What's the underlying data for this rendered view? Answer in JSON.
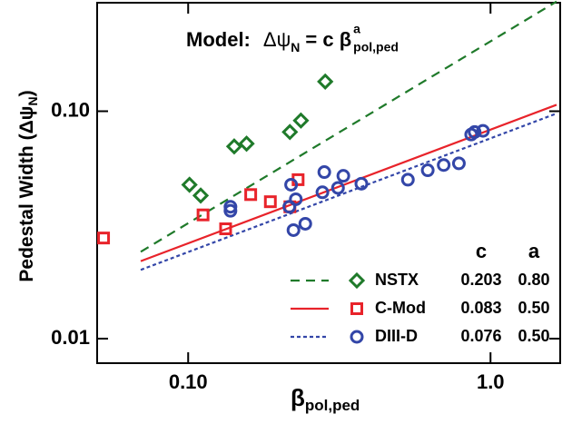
{
  "chart_data": {
    "type": "scatter",
    "title": {
      "lead": "Model:",
      "symbol": "Δψ",
      "symbol_sub": "N",
      "middle": "= c β",
      "sup": "a",
      "sub": "pol,ped"
    },
    "x_label": {
      "symbol": "β",
      "sub": "pol,ped"
    },
    "y_label": {
      "text": "Pedestal Width (Δψ",
      "sub": "N",
      "close": ")"
    },
    "log_x": true,
    "log_y": true,
    "xlim": [
      0.05,
      1.7
    ],
    "ylim": [
      0.0078,
      0.3
    ],
    "xticks": [
      {
        "value": 0.1,
        "label": "0.10"
      },
      {
        "value": 1,
        "label": "1.0"
      }
    ],
    "yticks": [
      0.01,
      {
        "value": 0.1,
        "label": "0.10"
      }
    ],
    "legend_columns": [
      "c",
      "a"
    ],
    "series": [
      {
        "name": "NSTX",
        "color": "#1f7a2a",
        "marker": "diamond",
        "dash": "10,7",
        "c": 0.203,
        "a": 0.8,
        "a_label": "0.80",
        "x": [
          0.101,
          0.11,
          0.142,
          0.156,
          0.217,
          0.236,
          0.284
        ],
        "values": [
          0.0475,
          0.0426,
          0.07,
          0.072,
          0.081,
          0.091,
          0.135
        ]
      },
      {
        "name": "C-Mod",
        "color": "#e8232a",
        "marker": "square",
        "dash": "none",
        "c": 0.083,
        "a": 0.5,
        "a_label": "0.50",
        "x": [
          0.0525,
          0.112,
          0.133,
          0.161,
          0.187,
          0.217,
          0.231
        ],
        "values": [
          0.0277,
          0.035,
          0.0304,
          0.043,
          0.04,
          0.038,
          0.05
        ]
      },
      {
        "name": "DIII-D",
        "color": "#3346a8",
        "marker": "circle",
        "dash": "4,3",
        "c": 0.076,
        "a": 0.5,
        "a_label": "0.50",
        "x": [
          0.138,
          0.138,
          0.216,
          0.219,
          0.227,
          0.223,
          0.244,
          0.282,
          0.278,
          0.313,
          0.326,
          0.374,
          0.533,
          0.62,
          0.7,
          0.786,
          0.863,
          0.886,
          0.944
        ],
        "values": [
          0.0365,
          0.038,
          0.038,
          0.0475,
          0.041,
          0.03,
          0.032,
          0.054,
          0.044,
          0.046,
          0.052,
          0.048,
          0.05,
          0.055,
          0.058,
          0.059,
          0.079,
          0.081,
          0.082
        ]
      }
    ]
  }
}
